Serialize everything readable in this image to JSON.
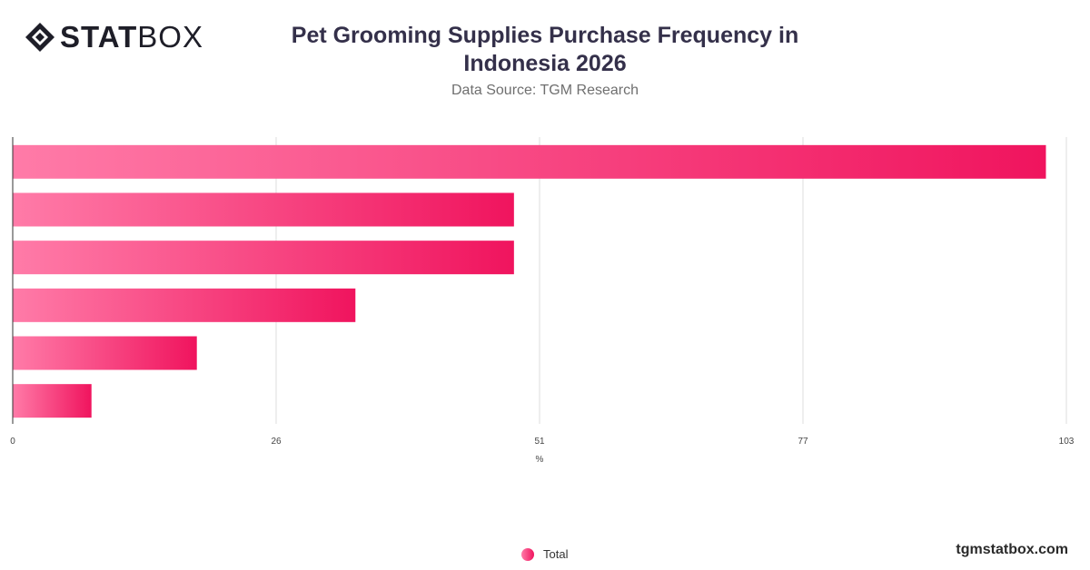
{
  "brand": {
    "logo_bold": "STAT",
    "logo_light": "BOX",
    "site": "tgmstatbox.com"
  },
  "header": {
    "title_line1": "Pet Grooming Supplies Purchase Frequency in",
    "title_line2": "Indonesia 2026",
    "subtitle": "Data Source: TGM Research"
  },
  "colors": {
    "bar_start": "#ff7ba8",
    "bar_end": "#f0145e",
    "grid": "#dcdcdc"
  },
  "chart_data": {
    "type": "bar",
    "orientation": "horizontal",
    "categories": [
      "",
      "",
      "",
      "",
      "",
      ""
    ],
    "series": [
      {
        "name": "Total",
        "values": [
          101,
          49,
          49,
          33.5,
          18,
          7.7
        ]
      }
    ],
    "xlim": [
      0,
      103
    ],
    "x_ticks": [
      "0",
      "26",
      "51",
      "77",
      "103"
    ],
    "x_tick_values": [
      0,
      25.75,
      51.5,
      77.25,
      103
    ],
    "xlabel": "%",
    "grid": true,
    "legend": {
      "position": "bottom",
      "entries": [
        "Total"
      ]
    }
  }
}
